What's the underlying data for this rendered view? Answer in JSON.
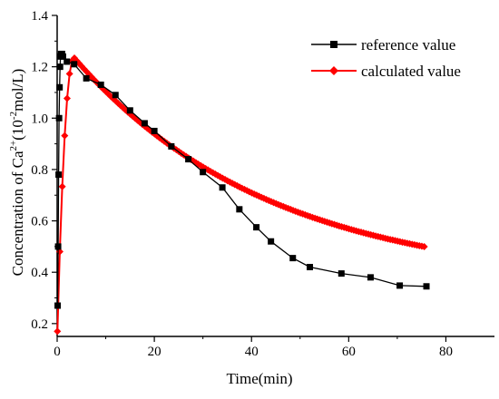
{
  "chart_data": {
    "type": "line",
    "title": "",
    "xlabel": "Time(min)",
    "ylabel_parts": {
      "base": "Concentration of Ca",
      "sup1": "2+",
      "mid": "(10",
      "sup2": "-2",
      "tail": "mol/L)"
    },
    "xlim": [
      0,
      90
    ],
    "ylim": [
      0.15,
      1.4
    ],
    "xticks": [
      0,
      20,
      40,
      60,
      80
    ],
    "yticks": [
      0.2,
      0.4,
      0.6,
      0.8,
      1.0,
      1.2,
      1.4
    ],
    "ytick_labels": [
      "0.2",
      "0.4",
      "0.6",
      "0.8",
      "1.0",
      "1.2",
      "1.4"
    ],
    "grid": false,
    "legend_position": "top-right",
    "series": [
      {
        "name": "reference value",
        "color": "#000000",
        "marker": "square",
        "x": [
          0.1,
          0.2,
          0.3,
          0.4,
          0.5,
          0.6,
          0.7,
          0.8,
          0.9,
          1.0,
          1.2,
          2.0,
          3.5,
          6.0,
          9.0,
          12.0,
          15.0,
          18.0,
          20.0,
          23.5,
          27.0,
          30.0,
          34.0,
          37.5,
          41.0,
          44.0,
          48.5,
          52.0,
          58.5,
          64.5,
          70.5,
          76.0
        ],
        "y": [
          0.27,
          0.5,
          0.78,
          1.0,
          1.12,
          1.2,
          1.24,
          1.25,
          1.25,
          1.25,
          1.24,
          1.22,
          1.21,
          1.155,
          1.13,
          1.09,
          1.03,
          0.98,
          0.95,
          0.89,
          0.84,
          0.79,
          0.73,
          0.645,
          0.575,
          0.52,
          0.455,
          0.42,
          0.395,
          0.38,
          0.348,
          0.345
        ]
      },
      {
        "name": "calculated value",
        "color": "#ff0000",
        "marker": "diamond"
      }
    ]
  }
}
